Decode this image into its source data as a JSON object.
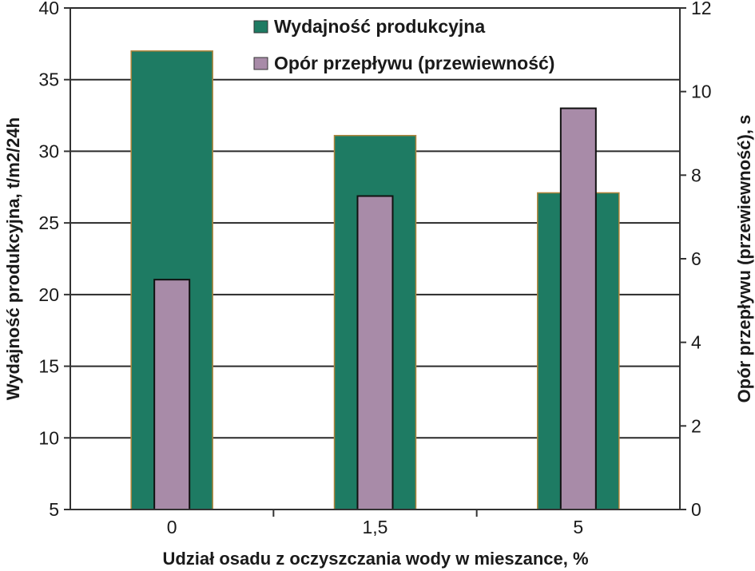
{
  "chart_data": {
    "type": "bar",
    "categories": [
      "0",
      "1,5",
      "5"
    ],
    "series": [
      {
        "name": "Wydajność produkcyjna",
        "axis": "left",
        "values": [
          37,
          31.1,
          27.1
        ],
        "color": "#1e7b63"
      },
      {
        "name": "Opór przepływu (przewiewność)",
        "axis": "right",
        "values": [
          5.5,
          7.5,
          9.6
        ],
        "color": "#a88ba8"
      }
    ],
    "xlabel": "Udział osadu z oczyszczania wody w mieszance, %",
    "ylabel_left": "Wydajność produkcyjna, t/m2/24h",
    "ylabel_right": "Opór przepływu (przewiewność), s",
    "ylim_left": [
      5,
      40
    ],
    "yticks_left": [
      "5",
      "10",
      "15",
      "20",
      "25",
      "30",
      "35",
      "40"
    ],
    "ylim_right": [
      0,
      12
    ],
    "yticks_right": [
      "0",
      "2",
      "4",
      "6",
      "8",
      "10",
      "12"
    ],
    "grid": true,
    "legend": "top-center"
  }
}
